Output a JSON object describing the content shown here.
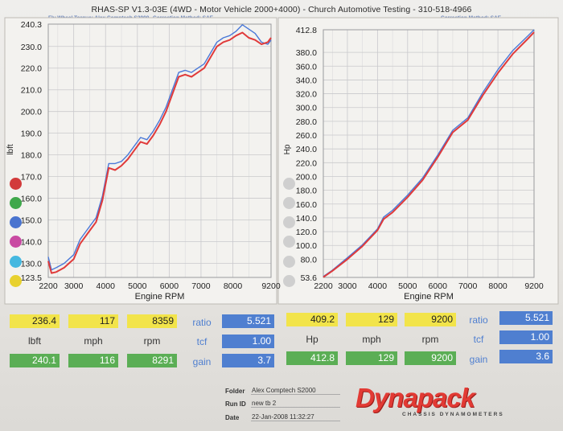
{
  "header": {
    "title": "RHAS-SP V1.3-03E  (4WD - Motor Vehicle 2000+4000) - Church Automotive Testing - 310-518-4966",
    "left_sub": "Fly Wheel Torque: Alex Comptech S2000",
    "left_corr": "Correction Method: SAE",
    "right_corr": "Correction Method: SAE"
  },
  "chart_data": [
    {
      "type": "line",
      "ylabel": "lbft",
      "xlabel": "Engine RPM",
      "xlim": [
        2200,
        9200
      ],
      "ylim": [
        123.5,
        240.3
      ],
      "x_ticks": [
        "2200",
        "3000",
        "4000",
        "5000",
        "6000",
        "7000",
        "8000",
        "9200"
      ],
      "y_ticks": [
        "240.3",
        "230.0",
        "220.0",
        "210.0",
        "200.0",
        "190.0",
        "180.0",
        "170.0",
        "160.0",
        "150.0",
        "140.0",
        "130.0",
        "123.5"
      ],
      "grid": true,
      "series": [
        {
          "color": "#e03a3a",
          "x": [
            2200,
            2300,
            2450,
            2700,
            3000,
            3200,
            3500,
            3700,
            3900,
            4100,
            4300,
            4500,
            4700,
            4900,
            5100,
            5300,
            5500,
            5700,
            5900,
            6100,
            6300,
            6500,
            6700,
            6900,
            7100,
            7300,
            7500,
            7700,
            7900,
            8100,
            8300,
            8500,
            8700,
            8900,
            9100,
            9200
          ],
          "values": [
            131,
            125.5,
            126,
            128,
            132,
            139,
            145,
            149,
            159,
            174,
            173,
            175,
            178,
            182,
            186,
            185,
            189,
            194,
            200,
            208,
            216,
            217,
            216,
            218,
            220,
            225,
            230,
            232,
            233,
            235,
            236.4,
            234,
            233,
            231,
            232,
            234
          ]
        },
        {
          "color": "#4a78d8",
          "x": [
            2200,
            2300,
            2450,
            2700,
            3000,
            3200,
            3500,
            3700,
            3900,
            4100,
            4300,
            4500,
            4700,
            4900,
            5100,
            5300,
            5500,
            5700,
            5900,
            6100,
            6300,
            6500,
            6700,
            6900,
            7100,
            7300,
            7500,
            7700,
            7900,
            8100,
            8300,
            8500,
            8700,
            8900,
            9100,
            9200
          ],
          "values": [
            133,
            127,
            128,
            130,
            134,
            141,
            147,
            151,
            161,
            176,
            176,
            177,
            180,
            184,
            188,
            187,
            191,
            196,
            202,
            210,
            218,
            219,
            218,
            220,
            222,
            227,
            232,
            234,
            235,
            237,
            240,
            238,
            236,
            232,
            231,
            233
          ]
        }
      ]
    },
    {
      "type": "line",
      "ylabel": "Hp",
      "xlabel": "Engine RPM",
      "xlim": [
        2200,
        9200
      ],
      "ylim": [
        53.6,
        412.8
      ],
      "x_ticks": [
        "2200",
        "3000",
        "4000",
        "5000",
        "6000",
        "7000",
        "8000",
        "9200"
      ],
      "y_ticks": [
        "412.8",
        "380.0",
        "360.0",
        "340.0",
        "320.0",
        "300.0",
        "280.0",
        "260.0",
        "240.0",
        "220.0",
        "200.0",
        "180.0",
        "160.0",
        "140.0",
        "120.0",
        "100.0",
        "80.0",
        "53.6"
      ],
      "grid": true,
      "series": [
        {
          "color": "#e03a3a",
          "x": [
            2200,
            2500,
            3000,
            3500,
            4000,
            4200,
            4500,
            5000,
            5500,
            6000,
            6500,
            7000,
            7500,
            8000,
            8500,
            9000,
            9200
          ],
          "values": [
            54,
            63,
            80,
            99,
            122,
            138,
            148,
            170,
            195,
            228,
            264,
            282,
            318,
            350,
            378,
            400,
            409.2
          ]
        },
        {
          "color": "#4a78d8",
          "x": [
            2200,
            2500,
            3000,
            3500,
            4000,
            4200,
            4500,
            5000,
            5500,
            6000,
            6500,
            7000,
            7500,
            8000,
            8500,
            9000,
            9200
          ],
          "values": [
            55,
            64,
            82,
            101,
            124,
            141,
            151,
            173,
            198,
            231,
            267,
            285,
            322,
            355,
            383,
            404,
            412.8
          ]
        }
      ]
    }
  ],
  "legend_colors": [
    "#d23b3b",
    "#3fa84b",
    "#4a74cf",
    "#c94aa2",
    "#45b8e0",
    "#e8d12e"
  ],
  "table": {
    "left": {
      "row1": [
        "236.4",
        "117",
        "8359"
      ],
      "labels": [
        "lbft",
        "mph",
        "rpm"
      ],
      "row2": [
        "240.1",
        "116",
        "8291"
      ],
      "side_labels": [
        "ratio",
        "tcf",
        "gain"
      ],
      "side_values": [
        "5.521",
        "1.00",
        "3.7"
      ]
    },
    "right": {
      "row1": [
        "409.2",
        "129",
        "9200"
      ],
      "labels": [
        "Hp",
        "mph",
        "rpm"
      ],
      "row2": [
        "412.8",
        "129",
        "9200"
      ],
      "side_labels": [
        "ratio",
        "tcf",
        "gain"
      ],
      "side_values": [
        "5.521",
        "1.00",
        "3.6"
      ]
    }
  },
  "info": {
    "folder_label": "Folder",
    "folder": "Alex Comptech S2000",
    "runid_label": "Run ID",
    "runid": "new tb 2",
    "date_label": "Date",
    "date": "22-Jan-2008  11:32:27"
  },
  "logo": {
    "word": "Dynapack",
    "sub": "CHASSIS DYNAMOMETERS"
  }
}
